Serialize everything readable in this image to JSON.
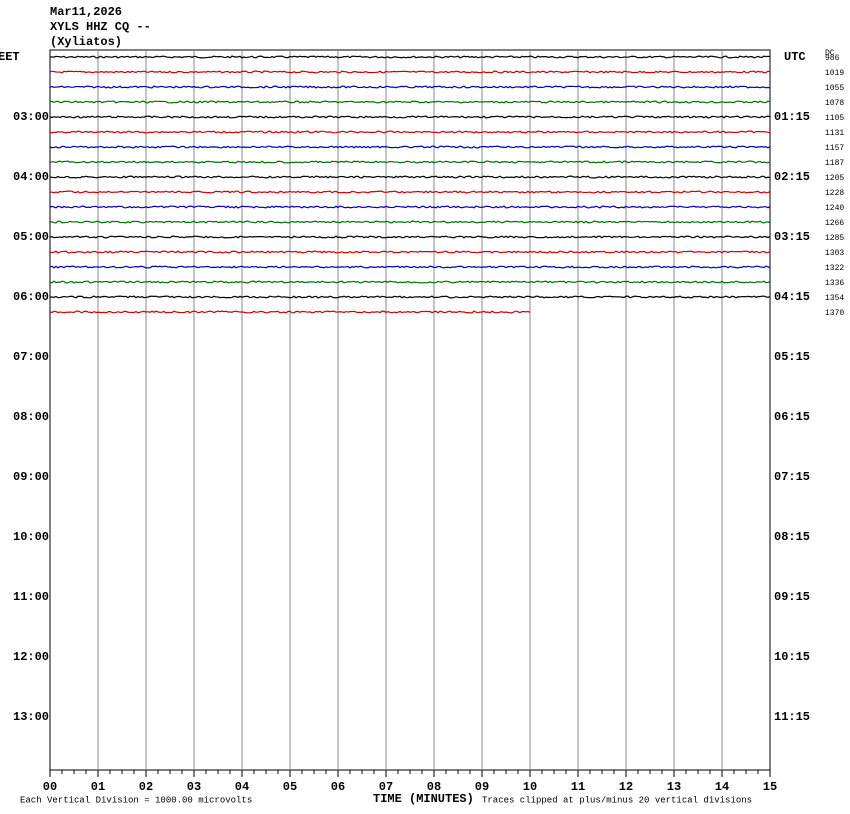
{
  "header": {
    "date": "Mar11,2026",
    "station": "XYLS HHZ CQ --",
    "location": "(Xyliatos)"
  },
  "left_label": "EET",
  "right_label": "UTC",
  "dc_label": "DC",
  "left_hours": [
    "03:00",
    "04:00",
    "05:00",
    "06:00",
    "07:00",
    "08:00",
    "09:00",
    "10:00",
    "11:00",
    "12:00",
    "13:00"
  ],
  "right_hours": [
    "01:15",
    "02:15",
    "03:15",
    "04:15",
    "05:15",
    "06:15",
    "07:15",
    "08:15",
    "09:15",
    "10:15",
    "11:15"
  ],
  "x_ticks": [
    "00",
    "01",
    "02",
    "03",
    "04",
    "05",
    "06",
    "07",
    "08",
    "09",
    "10",
    "11",
    "12",
    "13",
    "14",
    "15"
  ],
  "x_label": "TIME (MINUTES)",
  "footer_left": "Each Vertical Division = 1000.00 microvolts",
  "footer_right": "Traces clipped at plus/minus 20 vertical divisions",
  "trace_colors": [
    "#000000",
    "#d00000",
    "#0000b0",
    "#007000"
  ],
  "traces": [
    {
      "dc": "986",
      "end_minute": 15
    },
    {
      "dc": "1019",
      "end_minute": 15
    },
    {
      "dc": "1055",
      "end_minute": 15
    },
    {
      "dc": "1078",
      "end_minute": 15
    },
    {
      "dc": "1105",
      "end_minute": 15
    },
    {
      "dc": "1131",
      "end_minute": 15
    },
    {
      "dc": "1157",
      "end_minute": 15
    },
    {
      "dc": "1187",
      "end_minute": 15
    },
    {
      "dc": "1205",
      "end_minute": 15
    },
    {
      "dc": "1228",
      "end_minute": 15
    },
    {
      "dc": "1240",
      "end_minute": 15
    },
    {
      "dc": "1266",
      "end_minute": 15
    },
    {
      "dc": "1285",
      "end_minute": 15
    },
    {
      "dc": "1303",
      "end_minute": 15
    },
    {
      "dc": "1322",
      "end_minute": 15
    },
    {
      "dc": "1336",
      "end_minute": 15
    },
    {
      "dc": "1354",
      "end_minute": 15
    },
    {
      "dc": "1370",
      "end_minute": 10
    }
  ]
}
